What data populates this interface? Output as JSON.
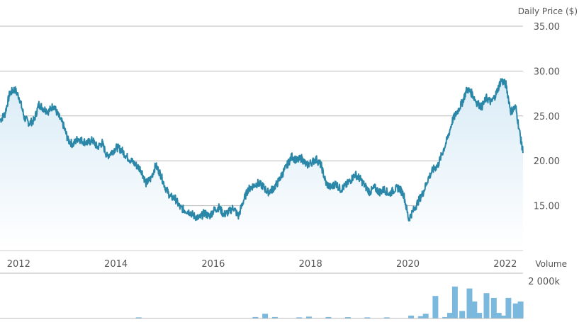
{
  "chart_data": [
    {
      "type": "area",
      "ylabel": "Daily Price ($)",
      "ylim": [
        10,
        35
      ],
      "yticks": [
        "35.00",
        "30.00",
        "25.00",
        "20.00",
        "15.00"
      ],
      "ytick_values": [
        35,
        30,
        25,
        20,
        15
      ],
      "xlim": [
        2011.85,
        2022.6
      ],
      "xticks": [
        "2012",
        "2014",
        "2016",
        "2018",
        "2020",
        "2022"
      ],
      "xtick_values": [
        2012,
        2014,
        2016,
        2018,
        2020,
        2022
      ],
      "grid": "horizontal",
      "line_color": "#2b87a8",
      "fill_color_top": "#d9ebf6",
      "fill_color_bottom": "#ffffff",
      "x": [
        2011.85,
        2011.95,
        2012.05,
        2012.15,
        2012.25,
        2012.35,
        2012.45,
        2012.55,
        2012.65,
        2012.75,
        2012.85,
        2012.95,
        2013.05,
        2013.15,
        2013.25,
        2013.35,
        2013.45,
        2013.55,
        2013.65,
        2013.75,
        2013.85,
        2013.95,
        2014.05,
        2014.15,
        2014.25,
        2014.35,
        2014.45,
        2014.55,
        2014.65,
        2014.75,
        2014.85,
        2014.95,
        2015.05,
        2015.15,
        2015.25,
        2015.35,
        2015.45,
        2015.55,
        2015.65,
        2015.75,
        2015.85,
        2015.95,
        2016.05,
        2016.15,
        2016.25,
        2016.35,
        2016.45,
        2016.55,
        2016.65,
        2016.75,
        2016.85,
        2016.95,
        2017.05,
        2017.15,
        2017.25,
        2017.35,
        2017.45,
        2017.55,
        2017.65,
        2017.75,
        2017.85,
        2017.95,
        2018.05,
        2018.15,
        2018.25,
        2018.35,
        2018.45,
        2018.55,
        2018.65,
        2018.75,
        2018.85,
        2018.95,
        2019.05,
        2019.15,
        2019.25,
        2019.35,
        2019.45,
        2019.55,
        2019.65,
        2019.75,
        2019.85,
        2019.95,
        2020.05,
        2020.15,
        2020.25,
        2020.35,
        2020.45,
        2020.55,
        2020.65,
        2020.75,
        2020.85,
        2020.95,
        2021.05,
        2021.15,
        2021.25,
        2021.35,
        2021.45,
        2021.55,
        2021.65,
        2021.75,
        2021.85,
        2021.95,
        2022.05,
        2022.15,
        2022.25,
        2022.35,
        2022.45,
        2022.55,
        2022.6
      ],
      "values": [
        24.5,
        25.2,
        27.5,
        28.0,
        27.0,
        24.8,
        24.2,
        24.5,
        26.3,
        25.8,
        25.5,
        26.2,
        25.0,
        24.0,
        22.3,
        21.8,
        22.5,
        22.2,
        22.0,
        22.3,
        21.5,
        22.0,
        20.5,
        21.0,
        21.5,
        21.2,
        20.5,
        20.0,
        19.5,
        19.0,
        17.5,
        18.0,
        19.5,
        18.5,
        17.0,
        16.0,
        15.8,
        14.8,
        14.5,
        14.3,
        13.8,
        13.6,
        14.2,
        13.8,
        14.5,
        14.8,
        14.0,
        14.3,
        14.8,
        13.8,
        15.5,
        16.8,
        17.2,
        17.5,
        17.2,
        16.5,
        16.8,
        17.5,
        18.5,
        19.5,
        20.5,
        20.0,
        20.3,
        19.5,
        19.8,
        20.2,
        19.5,
        17.5,
        17.0,
        17.5,
        16.8,
        17.2,
        17.8,
        18.5,
        18.0,
        17.2,
        16.5,
        17.0,
        16.5,
        16.8,
        16.3,
        16.8,
        17.0,
        16.2,
        13.5,
        14.5,
        15.5,
        16.5,
        18.0,
        19.0,
        19.5,
        21.0,
        22.5,
        24.5,
        25.5,
        26.5,
        28.0,
        27.5,
        26.5,
        26.0,
        27.0,
        26.5,
        27.5,
        29.0,
        28.5,
        25.5,
        26.0,
        22.5,
        21.0
      ]
    },
    {
      "type": "bar",
      "ylabel": "Volume",
      "ylim": [
        0,
        2000
      ],
      "yticks": [
        "2 000k"
      ],
      "ytick_values": [
        2000
      ],
      "xlim": [
        2011.85,
        2022.6
      ],
      "bar_color": "#7ab8de",
      "x": [
        2014.7,
        2017.1,
        2017.3,
        2017.5,
        2018.0,
        2018.2,
        2018.6,
        2019.0,
        2019.4,
        2019.8,
        2020.3,
        2020.5,
        2020.6,
        2020.8,
        2021.0,
        2021.1,
        2021.2,
        2021.35,
        2021.5,
        2021.6,
        2021.7,
        2021.85,
        2022.0,
        2022.1,
        2022.2,
        2022.3,
        2022.45,
        2022.55
      ],
      "values": [
        60,
        80,
        250,
        80,
        60,
        100,
        80,
        70,
        60,
        60,
        150,
        120,
        250,
        1200,
        80,
        300,
        1700,
        400,
        1600,
        900,
        300,
        1350,
        1100,
        300,
        150,
        1100,
        800,
        900
      ]
    }
  ]
}
